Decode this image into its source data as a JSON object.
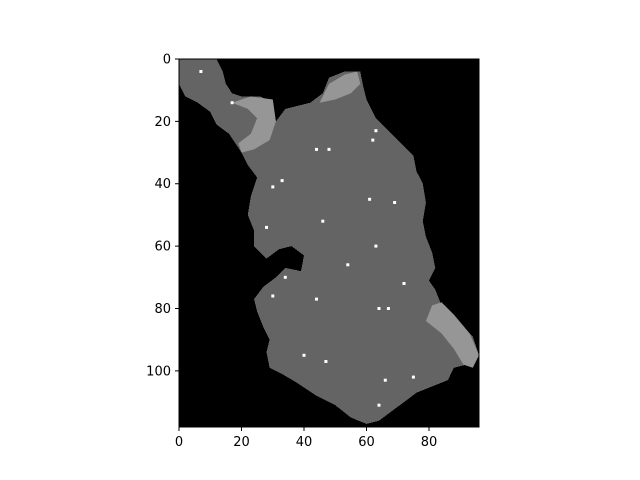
{
  "chart_data": {
    "type": "heatmap",
    "title": "",
    "xlabel": "",
    "ylabel": "",
    "xlim": [
      0,
      96
    ],
    "ylim": [
      118,
      0
    ],
    "y_axis_inverted": true,
    "grid": false,
    "legend": "none",
    "x_ticks": [
      0,
      20,
      40,
      60,
      80
    ],
    "y_ticks": [
      0,
      20,
      40,
      60,
      80,
      100
    ],
    "colormap": "gray",
    "levels": {
      "background": "#000000",
      "region": "#646464",
      "highlight": "#969696",
      "points": "#ffffff"
    },
    "region_outline": [
      [
        0,
        0
      ],
      [
        12,
        0
      ],
      [
        14,
        4
      ],
      [
        15,
        8
      ],
      [
        17,
        11
      ],
      [
        20,
        12
      ],
      [
        26,
        12
      ],
      [
        30,
        14
      ],
      [
        31,
        20
      ],
      [
        34,
        16
      ],
      [
        42,
        14
      ],
      [
        46,
        11
      ],
      [
        48,
        6
      ],
      [
        53,
        4
      ],
      [
        58,
        4
      ],
      [
        59,
        9
      ],
      [
        60,
        13
      ],
      [
        63,
        19
      ],
      [
        66,
        22
      ],
      [
        70,
        26
      ],
      [
        75,
        31
      ],
      [
        76,
        36
      ],
      [
        78,
        40
      ],
      [
        79,
        46
      ],
      [
        78,
        52
      ],
      [
        79,
        57
      ],
      [
        81,
        62
      ],
      [
        82,
        67
      ],
      [
        80,
        71
      ],
      [
        82,
        74
      ],
      [
        84,
        79
      ],
      [
        86,
        82
      ],
      [
        91,
        86
      ],
      [
        94,
        89
      ],
      [
        96,
        95
      ],
      [
        92,
        98
      ],
      [
        88,
        99
      ],
      [
        86,
        103
      ],
      [
        81,
        105
      ],
      [
        76,
        107
      ],
      [
        72,
        110
      ],
      [
        68,
        113
      ],
      [
        64,
        116
      ],
      [
        60,
        117
      ],
      [
        55,
        115
      ],
      [
        50,
        111
      ],
      [
        44,
        108
      ],
      [
        38,
        104
      ],
      [
        33,
        101
      ],
      [
        29,
        99
      ],
      [
        28,
        94
      ],
      [
        29,
        90
      ],
      [
        27,
        86
      ],
      [
        25,
        81
      ],
      [
        24,
        77
      ],
      [
        27,
        73
      ],
      [
        31,
        70
      ],
      [
        34,
        67
      ],
      [
        39,
        68
      ],
      [
        40,
        63
      ],
      [
        36,
        60
      ],
      [
        32,
        61
      ],
      [
        28,
        64
      ],
      [
        24,
        60
      ],
      [
        24,
        55
      ],
      [
        22,
        50
      ],
      [
        23,
        44
      ],
      [
        25,
        38
      ],
      [
        22,
        34
      ],
      [
        20,
        30
      ],
      [
        18,
        27
      ],
      [
        16,
        24
      ],
      [
        12,
        21
      ],
      [
        10,
        17
      ],
      [
        6,
        14
      ],
      [
        2,
        12
      ],
      [
        0,
        8
      ]
    ],
    "highlight_regions": [
      [
        [
          17,
          14
        ],
        [
          23,
          12
        ],
        [
          30,
          13
        ],
        [
          31,
          20
        ],
        [
          29,
          26
        ],
        [
          24,
          29
        ],
        [
          20,
          30
        ],
        [
          19,
          27
        ],
        [
          23,
          24
        ],
        [
          25,
          19
        ],
        [
          22,
          16
        ]
      ],
      [
        [
          45,
          14
        ],
        [
          48,
          8
        ],
        [
          53,
          5
        ],
        [
          57,
          4
        ],
        [
          58,
          8
        ],
        [
          55,
          11
        ],
        [
          50,
          13
        ]
      ],
      [
        [
          79,
          84
        ],
        [
          81,
          79
        ],
        [
          84,
          78
        ],
        [
          88,
          82
        ],
        [
          93,
          88
        ],
        [
          96,
          95
        ],
        [
          94,
          99
        ],
        [
          91,
          98
        ],
        [
          88,
          93
        ],
        [
          84,
          88
        ]
      ]
    ],
    "points": [
      {
        "x": 7,
        "y": 4
      },
      {
        "x": 17,
        "y": 14
      },
      {
        "x": 63,
        "y": 23
      },
      {
        "x": 62,
        "y": 26
      },
      {
        "x": 44,
        "y": 29
      },
      {
        "x": 48,
        "y": 29
      },
      {
        "x": 33,
        "y": 39
      },
      {
        "x": 30,
        "y": 41
      },
      {
        "x": 61,
        "y": 45
      },
      {
        "x": 69,
        "y": 46
      },
      {
        "x": 46,
        "y": 52
      },
      {
        "x": 28,
        "y": 54
      },
      {
        "x": 63,
        "y": 60
      },
      {
        "x": 54,
        "y": 66
      },
      {
        "x": 34,
        "y": 70
      },
      {
        "x": 72,
        "y": 72
      },
      {
        "x": 30,
        "y": 76
      },
      {
        "x": 44,
        "y": 77
      },
      {
        "x": 64,
        "y": 80
      },
      {
        "x": 67,
        "y": 80
      },
      {
        "x": 40,
        "y": 95
      },
      {
        "x": 47,
        "y": 97
      },
      {
        "x": 66,
        "y": 103
      },
      {
        "x": 75,
        "y": 102
      },
      {
        "x": 64,
        "y": 111
      }
    ]
  }
}
